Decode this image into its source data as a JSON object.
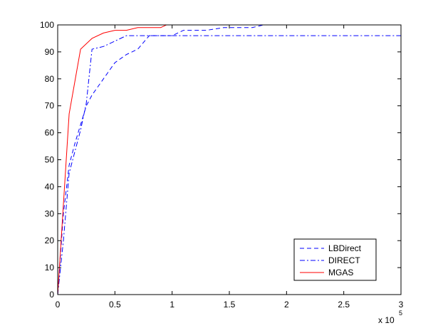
{
  "chart_data": {
    "type": "line",
    "title": "",
    "xlabel": "",
    "ylabel": "",
    "x_multiplier_label": {
      "base": "x 10",
      "exponent": "5"
    },
    "xlim": [
      0,
      300000
    ],
    "ylim": [
      0,
      100
    ],
    "x_ticks": [
      0,
      50000,
      100000,
      150000,
      200000,
      250000,
      300000
    ],
    "x_tick_labels": [
      "0",
      "0.5",
      "1",
      "1.5",
      "2",
      "2.5",
      "3"
    ],
    "y_ticks": [
      0,
      10,
      20,
      30,
      40,
      50,
      60,
      70,
      80,
      90,
      100
    ],
    "y_tick_labels": [
      "0",
      "10",
      "20",
      "30",
      "40",
      "50",
      "60",
      "70",
      "80",
      "90",
      "100"
    ],
    "grid": false,
    "legend_position": "bottom-right",
    "series": [
      {
        "name": "LBDirect",
        "color": "#0000ff",
        "line_style": "dashed",
        "points": [
          [
            0,
            0
          ],
          [
            5000,
            30
          ],
          [
            10000,
            48
          ],
          [
            15000,
            56
          ],
          [
            20000,
            63
          ],
          [
            25000,
            70
          ],
          [
            30000,
            74
          ],
          [
            40000,
            80
          ],
          [
            50000,
            86
          ],
          [
            60000,
            89
          ],
          [
            70000,
            91
          ],
          [
            80000,
            96
          ],
          [
            100000,
            96
          ],
          [
            110000,
            98
          ],
          [
            130000,
            98
          ],
          [
            145000,
            99
          ],
          [
            170000,
            99
          ],
          [
            180000,
            100
          ],
          [
            300000,
            100
          ]
        ]
      },
      {
        "name": "DIRECT",
        "color": "#0000ff",
        "line_style": "dashdot",
        "points": [
          [
            0,
            0
          ],
          [
            5000,
            20
          ],
          [
            10000,
            45
          ],
          [
            20000,
            61
          ],
          [
            25000,
            71
          ],
          [
            30000,
            91
          ],
          [
            40000,
            92
          ],
          [
            50000,
            94
          ],
          [
            60000,
            96
          ],
          [
            300000,
            96
          ]
        ]
      },
      {
        "name": "MGAS",
        "color": "#ff0000",
        "line_style": "solid",
        "points": [
          [
            0,
            0
          ],
          [
            10000,
            67
          ],
          [
            20000,
            91
          ],
          [
            30000,
            95
          ],
          [
            40000,
            97
          ],
          [
            50000,
            98
          ],
          [
            60000,
            98
          ],
          [
            70000,
            99
          ],
          [
            90000,
            99
          ],
          [
            95000,
            100
          ],
          [
            300000,
            100
          ]
        ]
      }
    ]
  }
}
